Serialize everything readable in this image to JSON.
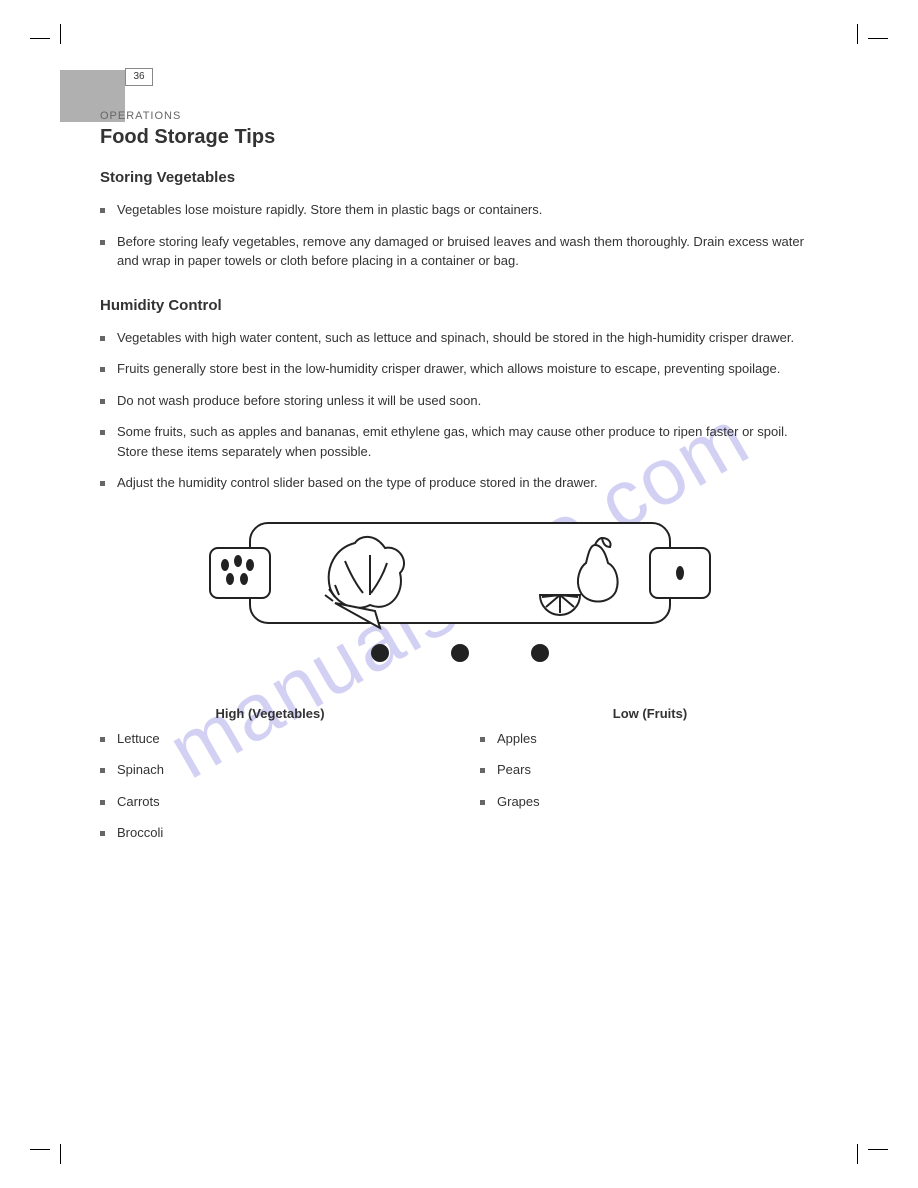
{
  "page": {
    "badge": "36",
    "section_label": "OPERATIONS",
    "section_title": "Food Storage Tips",
    "subsection": "Storing Vegetables",
    "subsection2": "Humidity Control",
    "watermark": "manualshive.com"
  },
  "bullets_group1": [
    "Vegetables lose moisture rapidly. Store them in plastic bags or containers.",
    "Before storing leafy vegetables, remove any damaged or bruised leaves and wash them thoroughly. Drain excess water and wrap in paper towels or cloth before placing in a container or bag."
  ],
  "bullets_group2": [
    "Vegetables with high water content, such as lettuce and spinach, should be stored in the high-humidity crisper drawer.",
    "Fruits generally store best in the low-humidity crisper drawer, which allows moisture to escape, preventing spoilage.",
    "Do not wash produce before storing unless it will be used soon.",
    "Some fruits, such as apples and bananas, emit ethylene gas, which may cause other produce to ripen faster or spoil. Store these items separately when possible.",
    "Adjust the humidity control slider based on the type of produce stored in the drawer."
  ],
  "diagram": {
    "high_label": "High",
    "low_label": "Low",
    "stroke": "#222222",
    "fill": "#ffffff"
  },
  "columns": {
    "left": {
      "header": "High (Vegetables)",
      "items": [
        "Lettuce",
        "Spinach",
        "Carrots",
        "Broccoli"
      ]
    },
    "right": {
      "header": "Low (Fruits)",
      "items": [
        "Apples",
        "Pears",
        "Grapes"
      ]
    }
  },
  "style": {
    "bg": "#ffffff",
    "text": "#333333",
    "bullet_color": "#666666",
    "tab_color": "#b0b0b0",
    "watermark_color": "#a9a4e8"
  }
}
